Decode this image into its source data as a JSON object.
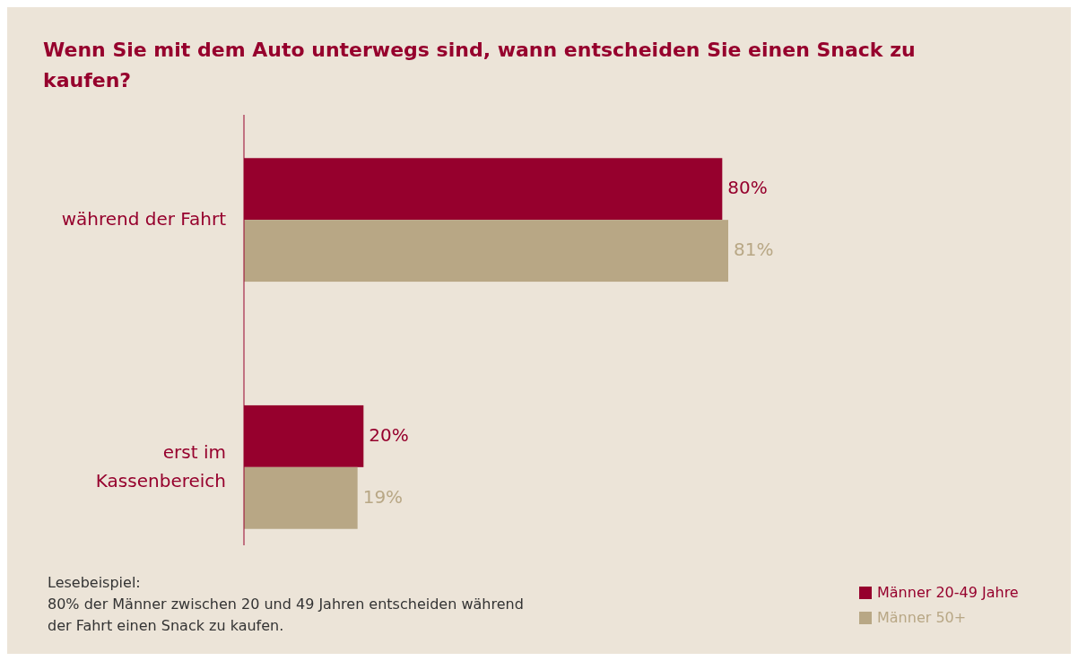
{
  "chart_data": {
    "type": "bar",
    "orientation": "horizontal",
    "title": "Wenn Sie mit dem Auto unterwegs sind, wann entscheiden Sie einen Snack zu kaufen?",
    "categories": [
      "während der Fahrt",
      "erst im Kassenbereich"
    ],
    "series": [
      {
        "name": "Männer 20-49 Jahre",
        "color": "#96002d",
        "values": [
          80,
          20
        ],
        "value_labels": [
          "80%",
          "20%"
        ]
      },
      {
        "name": "Männer 50+",
        "color": "#b8a785",
        "values": [
          81,
          19
        ],
        "value_labels": [
          "81%",
          "19%"
        ]
      }
    ],
    "legend": "bottom right",
    "annotations": [
      "Lesebeispiel:\n80% der Männer zwischen 20 und 49 Jahren entscheiden während\nder Fahrt einen Snack zu kaufen."
    ]
  }
}
